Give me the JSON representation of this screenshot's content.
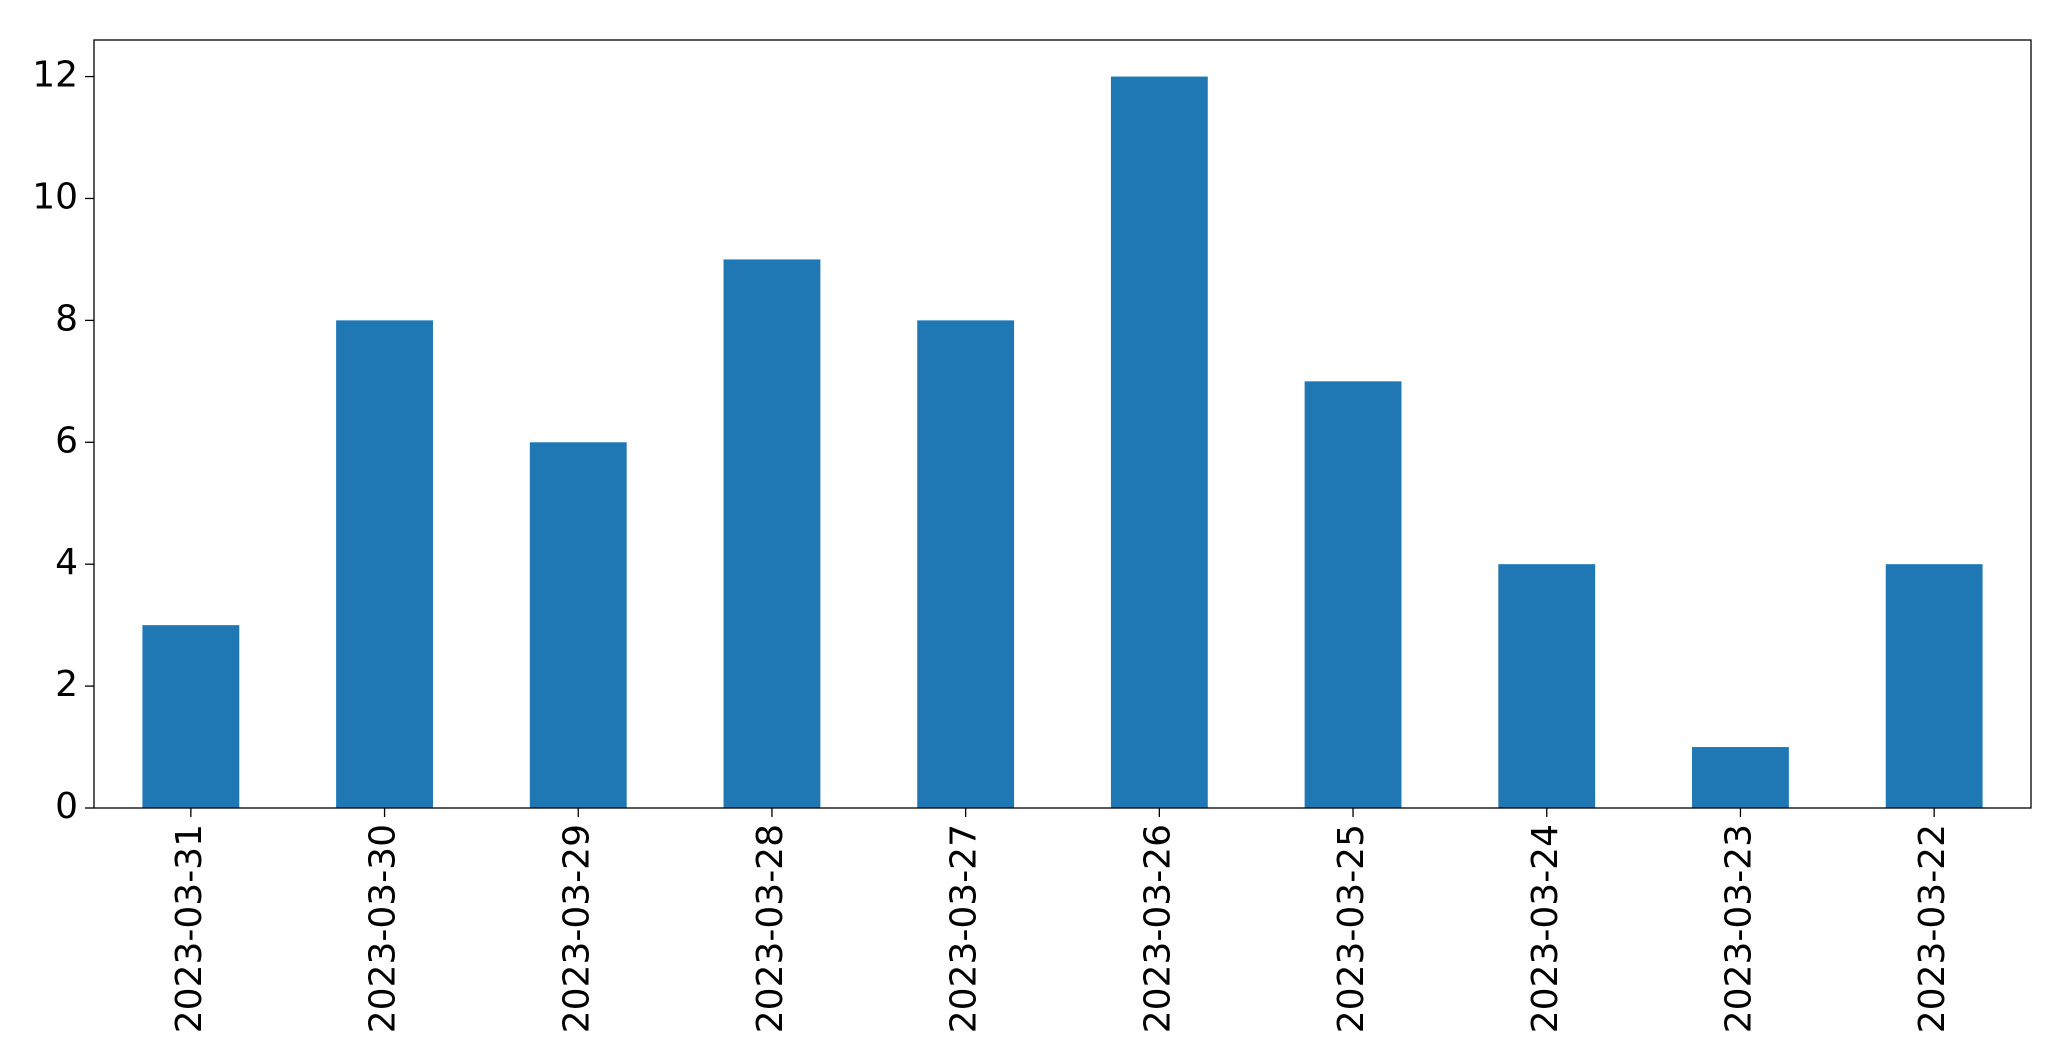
{
  "chart_data": {
    "type": "bar",
    "categories": [
      "2023-03-31",
      "2023-03-30",
      "2023-03-29",
      "2023-03-28",
      "2023-03-27",
      "2023-03-26",
      "2023-03-25",
      "2023-03-24",
      "2023-03-23",
      "2023-03-22"
    ],
    "values": [
      3,
      8,
      6,
      9,
      8,
      12,
      7,
      4,
      1,
      4
    ],
    "color": "#1f77b4",
    "ylim": [
      0,
      12.6
    ],
    "yticks": [
      0,
      2,
      4,
      6,
      8,
      10,
      12
    ],
    "grid": false
  }
}
